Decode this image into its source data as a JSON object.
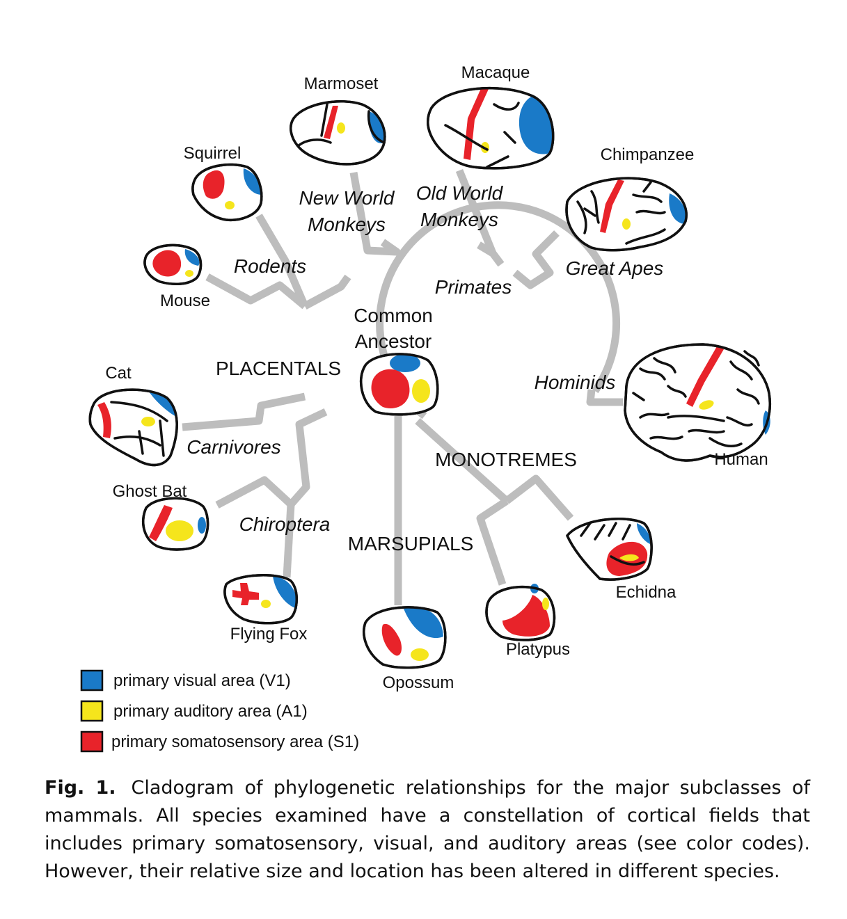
{
  "colors": {
    "v1": "#1a7ac8",
    "a1": "#f5e51c",
    "s1": "#e8232a",
    "branch": "#bdbdbd",
    "outline": "#111111"
  },
  "species": {
    "marmoset": "Marmoset",
    "macaque": "Macaque",
    "squirrel": "Squirrel",
    "chimpanzee": "Chimpanzee",
    "mouse": "Mouse",
    "cat": "Cat",
    "human": "Human",
    "ghost_bat": "Ghost Bat",
    "echidna": "Echidna",
    "flying_fox": "Flying Fox",
    "platypus": "Platypus",
    "opossum": "Opossum"
  },
  "groups": {
    "new_world_1": "New World",
    "new_world_2": "Monkeys",
    "old_world_1": "Old World",
    "old_world_2": "Monkeys",
    "rodents": "Rodents",
    "primates": "Primates",
    "great_apes": "Great Apes",
    "hominids": "Hominids",
    "carnivores": "Carnivores",
    "chiroptera": "Chiroptera"
  },
  "clades": {
    "placentals": "PLACENTALS",
    "monotremes": "MONOTREMES",
    "marsupials": "MARSUPIALS",
    "ancestor_1": "Common",
    "ancestor_2": "Ancestor"
  },
  "legend": [
    {
      "label": "primary visual area (V1)",
      "color": "#1a7ac8"
    },
    {
      "label": "primary auditory area (A1)",
      "color": "#f5e51c"
    },
    {
      "label": "primary somatosensory area (S1)",
      "color": "#e8232a"
    }
  ],
  "caption": {
    "label": "Fig. 1.",
    "text": "Cladogram of phylogenetic relationships for the major subclasses of mammals. All species examined have a constellation of cortical fields that includes primary somatosensory, visual, and auditory areas (see color codes). However, their relative size and location has been altered in different species."
  }
}
